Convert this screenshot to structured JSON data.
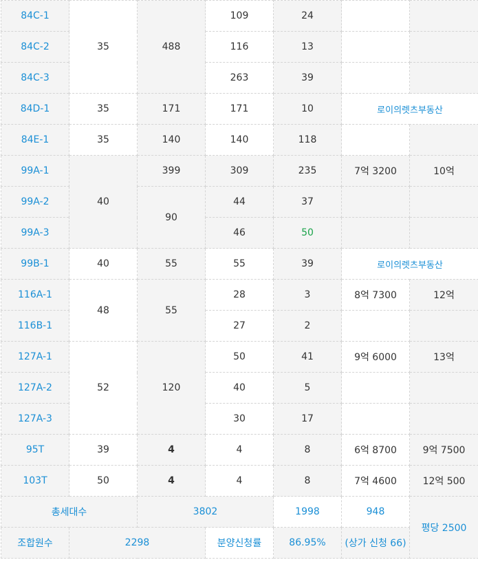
{
  "rows": [
    {
      "type": "84C-1",
      "area": "35",
      "total": "488",
      "general": "109",
      "special": "24"
    },
    {
      "type": "84C-2",
      "general": "116",
      "special": "13"
    },
    {
      "type": "84C-3",
      "general": "263",
      "special": "39"
    },
    {
      "type": "84D-1",
      "area": "35",
      "total": "171",
      "general": "171",
      "special": "10",
      "note": "로이의렛츠부동산"
    },
    {
      "type": "84E-1",
      "area": "35",
      "total": "140",
      "general": "140",
      "special": "118"
    },
    {
      "type": "99A-1",
      "area": "40",
      "total": "399",
      "general": "309",
      "special": "235",
      "price": "7억 3200",
      "market": "10억"
    },
    {
      "type": "99A-2",
      "total": "90",
      "general": "44",
      "special": "37"
    },
    {
      "type": "99A-3",
      "general": "46",
      "special": "50"
    },
    {
      "type": "99B-1",
      "area": "40",
      "total": "55",
      "general": "55",
      "special": "39",
      "note": "로이의렛츠부동산"
    },
    {
      "type": "116A-1",
      "area": "48",
      "total": "55",
      "general": "28",
      "special": "3",
      "price": "8억 7300",
      "market": "12억"
    },
    {
      "type": "116B-1",
      "general": "27",
      "special": "2"
    },
    {
      "type": "127A-1",
      "area": "52",
      "total": "120",
      "general": "50",
      "special": "41",
      "price": "9억 6000",
      "market": "13억"
    },
    {
      "type": "127A-2",
      "general": "40",
      "special": "5"
    },
    {
      "type": "127A-3",
      "general": "30",
      "special": "17"
    },
    {
      "type": "95T",
      "area": "39",
      "total": "4",
      "general": "4",
      "special": "8",
      "price": "6억 8700",
      "market": "9억 7500"
    },
    {
      "type": "103T",
      "area": "50",
      "total": "4",
      "general": "4",
      "special": "8",
      "price": "7억 4600",
      "market": "12억 500"
    }
  ],
  "footer": {
    "total_households_label": "총세대수",
    "total_households": "3802",
    "general_total": "1998",
    "special_total": "948",
    "per_pyeong": "평당 2500",
    "members_label": "조합원수",
    "members": "2298",
    "subscription_label": "분양신청률",
    "subscription_rate": "86.95%",
    "shop_note": "(상가 신청 66)"
  },
  "colors": {
    "link": "#1a8fd6",
    "highlight": "#1aa34a",
    "shade": "#f4f4f4",
    "border": "#d4d4d4"
  }
}
